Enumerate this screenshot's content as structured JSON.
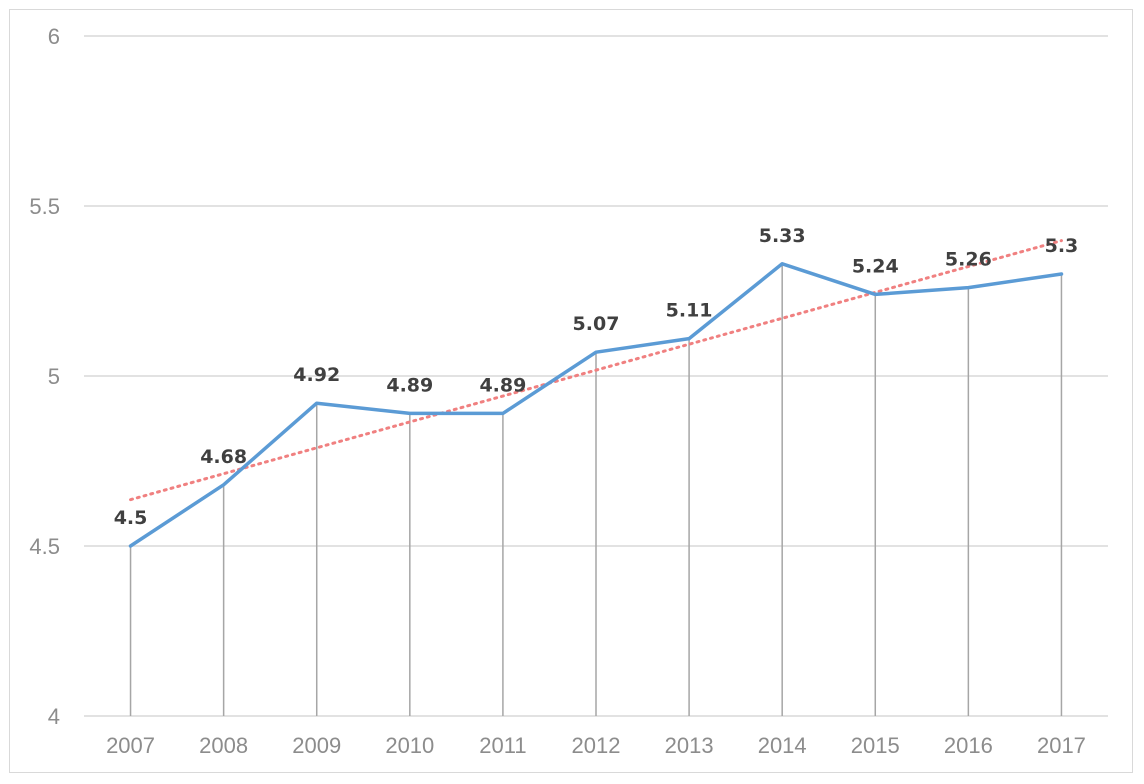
{
  "chart_data": {
    "type": "line",
    "categories": [
      "2007",
      "2008",
      "2009",
      "2010",
      "2011",
      "2012",
      "2013",
      "2014",
      "2015",
      "2016",
      "2017"
    ],
    "series": [
      {
        "values": [
          4.5,
          4.68,
          4.92,
          4.89,
          4.89,
          5.07,
          5.11,
          5.33,
          5.24,
          5.26,
          5.3
        ],
        "data_labels": [
          "4.5",
          "4.68",
          "4.92",
          "4.89",
          "4.89",
          "5.07",
          "5.11",
          "5.33",
          "5.24",
          "5.26",
          "5.3"
        ],
        "color": "#5b9bd5"
      }
    ],
    "trendline": {
      "type": "linear",
      "style": "dotted",
      "color": "#f08080"
    },
    "drop_lines": true,
    "drop_line_color": "#a6a6a6",
    "ylim": [
      4,
      6
    ],
    "yticks": [
      "4",
      "4.5",
      "5",
      "5.5",
      "6"
    ],
    "ytick_values": [
      4,
      4.5,
      5,
      5.5,
      6
    ],
    "grid": true,
    "grid_color": "#d9d9d9",
    "legend": "none",
    "title": "",
    "xlabel": "",
    "ylabel": ""
  }
}
